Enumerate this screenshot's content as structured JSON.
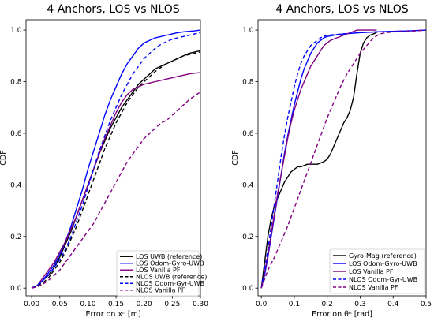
{
  "chart_data": [
    {
      "type": "line",
      "title": "4 Anchors, LOS vs NLOS",
      "xlabel": "Error on xⁿ [m]",
      "ylabel": "CDF",
      "xlim": [
        -0.01,
        0.3
      ],
      "ylim": [
        -0.03,
        1.04
      ],
      "xticks": [
        "0.00",
        "0.05",
        "0.10",
        "0.15",
        "0.20",
        "0.25",
        "0.30"
      ],
      "xtick_values": [
        0.0,
        0.05,
        0.1,
        0.15,
        0.2,
        0.25,
        0.3
      ],
      "yticks": [
        "0.0",
        "0.2",
        "0.4",
        "0.6",
        "0.8",
        "1.0"
      ],
      "ytick_values": [
        0.0,
        0.2,
        0.4,
        0.6,
        0.8,
        1.0
      ],
      "grid": false,
      "legend_position": "lower-right",
      "series": [
        {
          "name": "LOS UWB (reference)",
          "color": "#000000",
          "dash": "solid",
          "x": [
            0.0,
            0.01,
            0.02,
            0.03,
            0.04,
            0.05,
            0.06,
            0.07,
            0.08,
            0.09,
            0.1,
            0.11,
            0.12,
            0.13,
            0.14,
            0.15,
            0.16,
            0.17,
            0.18,
            0.19,
            0.2,
            0.21,
            0.22,
            0.23,
            0.24,
            0.25,
            0.26,
            0.27,
            0.28,
            0.29,
            0.3
          ],
          "y": [
            0.0,
            0.01,
            0.03,
            0.05,
            0.08,
            0.12,
            0.17,
            0.22,
            0.28,
            0.34,
            0.4,
            0.46,
            0.52,
            0.57,
            0.62,
            0.66,
            0.7,
            0.73,
            0.76,
            0.79,
            0.81,
            0.83,
            0.85,
            0.86,
            0.87,
            0.88,
            0.89,
            0.9,
            0.91,
            0.915,
            0.92
          ]
        },
        {
          "name": "LOS Odom-Gyro-UWB",
          "color": "#0000ff",
          "dash": "solid",
          "x": [
            0.0,
            0.01,
            0.02,
            0.03,
            0.04,
            0.05,
            0.06,
            0.07,
            0.08,
            0.09,
            0.1,
            0.11,
            0.12,
            0.13,
            0.14,
            0.15,
            0.16,
            0.17,
            0.18,
            0.19,
            0.2,
            0.21,
            0.22,
            0.23,
            0.24,
            0.25,
            0.26,
            0.27,
            0.28,
            0.29,
            0.3
          ],
          "y": [
            0.0,
            0.01,
            0.03,
            0.06,
            0.09,
            0.13,
            0.18,
            0.24,
            0.31,
            0.38,
            0.46,
            0.53,
            0.6,
            0.67,
            0.73,
            0.78,
            0.83,
            0.87,
            0.9,
            0.93,
            0.95,
            0.96,
            0.97,
            0.975,
            0.98,
            0.985,
            0.99,
            0.993,
            0.995,
            0.997,
            1.0
          ]
        },
        {
          "name": "LOS Vanilla PF",
          "color": "#800080",
          "dash": "solid",
          "x": [
            0.0,
            0.01,
            0.02,
            0.03,
            0.04,
            0.05,
            0.06,
            0.07,
            0.08,
            0.09,
            0.1,
            0.11,
            0.12,
            0.13,
            0.14,
            0.15,
            0.16,
            0.17,
            0.18,
            0.19,
            0.2,
            0.21,
            0.22,
            0.23,
            0.24,
            0.25,
            0.26,
            0.27,
            0.28,
            0.29,
            0.3
          ],
          "y": [
            0.0,
            0.01,
            0.04,
            0.07,
            0.1,
            0.14,
            0.18,
            0.23,
            0.28,
            0.34,
            0.4,
            0.46,
            0.52,
            0.58,
            0.63,
            0.68,
            0.72,
            0.75,
            0.77,
            0.78,
            0.79,
            0.795,
            0.8,
            0.805,
            0.81,
            0.815,
            0.82,
            0.825,
            0.83,
            0.833,
            0.835
          ]
        },
        {
          "name": "NLOS UWB (reference)",
          "color": "#000000",
          "dash": "dashed",
          "x": [
            0.0,
            0.01,
            0.02,
            0.03,
            0.04,
            0.05,
            0.06,
            0.07,
            0.08,
            0.09,
            0.1,
            0.11,
            0.12,
            0.13,
            0.14,
            0.15,
            0.16,
            0.17,
            0.18,
            0.19,
            0.2,
            0.21,
            0.22,
            0.23,
            0.24,
            0.25,
            0.26,
            0.27,
            0.28,
            0.29,
            0.3
          ],
          "y": [
            0.0,
            0.01,
            0.02,
            0.04,
            0.07,
            0.1,
            0.14,
            0.19,
            0.24,
            0.3,
            0.36,
            0.42,
            0.48,
            0.54,
            0.59,
            0.64,
            0.68,
            0.72,
            0.75,
            0.78,
            0.8,
            0.82,
            0.84,
            0.855,
            0.87,
            0.88,
            0.89,
            0.9,
            0.905,
            0.91,
            0.915
          ]
        },
        {
          "name": "NLOS Odom-Gyr-UWB",
          "color": "#0000ff",
          "dash": "dashed",
          "x": [
            0.0,
            0.01,
            0.02,
            0.03,
            0.04,
            0.05,
            0.06,
            0.07,
            0.08,
            0.09,
            0.1,
            0.11,
            0.12,
            0.13,
            0.14,
            0.15,
            0.16,
            0.17,
            0.18,
            0.19,
            0.2,
            0.21,
            0.22,
            0.23,
            0.24,
            0.25,
            0.26,
            0.27,
            0.28,
            0.29,
            0.3
          ],
          "y": [
            0.0,
            0.01,
            0.03,
            0.05,
            0.08,
            0.11,
            0.15,
            0.2,
            0.26,
            0.32,
            0.39,
            0.46,
            0.53,
            0.59,
            0.65,
            0.7,
            0.75,
            0.79,
            0.83,
            0.86,
            0.89,
            0.91,
            0.93,
            0.945,
            0.955,
            0.965,
            0.97,
            0.975,
            0.98,
            0.985,
            0.99
          ]
        },
        {
          "name": "NLOS Vanilla PF",
          "color": "#800080",
          "dash": "dashed",
          "x": [
            0.0,
            0.01,
            0.02,
            0.03,
            0.04,
            0.05,
            0.06,
            0.07,
            0.08,
            0.09,
            0.1,
            0.11,
            0.12,
            0.13,
            0.14,
            0.15,
            0.16,
            0.17,
            0.18,
            0.19,
            0.2,
            0.21,
            0.22,
            0.23,
            0.24,
            0.25,
            0.26,
            0.27,
            0.28,
            0.29,
            0.3
          ],
          "y": [
            0.0,
            0.005,
            0.015,
            0.03,
            0.05,
            0.07,
            0.1,
            0.13,
            0.16,
            0.19,
            0.22,
            0.25,
            0.29,
            0.33,
            0.37,
            0.41,
            0.45,
            0.49,
            0.52,
            0.55,
            0.58,
            0.6,
            0.62,
            0.64,
            0.65,
            0.67,
            0.69,
            0.71,
            0.73,
            0.745,
            0.76
          ]
        }
      ]
    },
    {
      "type": "line",
      "title": "4 Anchors, LOS vs NLOS",
      "xlabel": "Error on θⁿ [rad]",
      "ylabel": "CDF",
      "xlim": [
        -0.01,
        0.5
      ],
      "ylim": [
        -0.03,
        1.04
      ],
      "xticks": [
        "0.0",
        "0.1",
        "0.2",
        "0.3",
        "0.4",
        "0.5"
      ],
      "xtick_values": [
        0.0,
        0.1,
        0.2,
        0.3,
        0.4,
        0.5
      ],
      "yticks": [
        "0.0",
        "0.2",
        "0.4",
        "0.6",
        "0.8",
        "1.0"
      ],
      "ytick_values": [
        0.0,
        0.2,
        0.4,
        0.6,
        0.8,
        1.0
      ],
      "grid": false,
      "legend_position": "lower-right",
      "series": [
        {
          "name": "Gyro-Mag (reference)",
          "color": "#000000",
          "dash": "solid",
          "x": [
            0.0,
            0.01,
            0.02,
            0.03,
            0.04,
            0.05,
            0.06,
            0.07,
            0.08,
            0.09,
            0.1,
            0.11,
            0.12,
            0.13,
            0.14,
            0.15,
            0.16,
            0.17,
            0.18,
            0.19,
            0.2,
            0.21,
            0.22,
            0.23,
            0.24,
            0.25,
            0.26,
            0.27,
            0.28,
            0.29,
            0.3,
            0.31,
            0.32,
            0.33,
            0.34,
            0.35
          ],
          "y": [
            0.0,
            0.1,
            0.2,
            0.27,
            0.32,
            0.35,
            0.38,
            0.41,
            0.43,
            0.45,
            0.46,
            0.47,
            0.47,
            0.475,
            0.48,
            0.48,
            0.48,
            0.48,
            0.485,
            0.49,
            0.5,
            0.52,
            0.55,
            0.58,
            0.61,
            0.64,
            0.66,
            0.69,
            0.74,
            0.83,
            0.91,
            0.95,
            0.97,
            0.98,
            0.985,
            0.99
          ]
        },
        {
          "name": "LOS Odom-Gyro-UWB",
          "color": "#0000ff",
          "dash": "solid",
          "x": [
            0.0,
            0.01,
            0.02,
            0.03,
            0.04,
            0.05,
            0.06,
            0.07,
            0.08,
            0.09,
            0.1,
            0.11,
            0.12,
            0.13,
            0.14,
            0.15,
            0.16,
            0.17,
            0.18,
            0.19,
            0.2,
            0.22,
            0.25,
            0.3,
            0.35,
            0.4,
            0.45,
            0.5
          ],
          "y": [
            0.0,
            0.05,
            0.12,
            0.2,
            0.28,
            0.36,
            0.44,
            0.52,
            0.59,
            0.65,
            0.71,
            0.76,
            0.81,
            0.85,
            0.88,
            0.91,
            0.93,
            0.95,
            0.96,
            0.97,
            0.975,
            0.98,
            0.985,
            0.99,
            0.993,
            0.995,
            0.997,
            1.0
          ]
        },
        {
          "name": "LOS Vanilla PF",
          "color": "#800080",
          "dash": "solid",
          "x": [
            0.0,
            0.01,
            0.02,
            0.03,
            0.04,
            0.05,
            0.06,
            0.07,
            0.08,
            0.09,
            0.1,
            0.11,
            0.12,
            0.13,
            0.14,
            0.15,
            0.16,
            0.17,
            0.18,
            0.19,
            0.2,
            0.21,
            0.22,
            0.23,
            0.24,
            0.25,
            0.26,
            0.27,
            0.28,
            0.29,
            0.3,
            0.35
          ],
          "y": [
            0.0,
            0.06,
            0.13,
            0.21,
            0.29,
            0.37,
            0.44,
            0.51,
            0.58,
            0.64,
            0.69,
            0.73,
            0.77,
            0.8,
            0.83,
            0.86,
            0.88,
            0.9,
            0.92,
            0.94,
            0.95,
            0.96,
            0.965,
            0.97,
            0.975,
            0.98,
            0.985,
            0.99,
            0.995,
            1.0,
            1.0,
            1.0
          ]
        },
        {
          "name": "NLOS Odom-Gyr-UWB",
          "color": "#0000ff",
          "dash": "dashed",
          "x": [
            0.0,
            0.01,
            0.02,
            0.03,
            0.04,
            0.05,
            0.06,
            0.07,
            0.08,
            0.09,
            0.1,
            0.11,
            0.12,
            0.13,
            0.14,
            0.15,
            0.16,
            0.17,
            0.18,
            0.19,
            0.2,
            0.25,
            0.3,
            0.35,
            0.4,
            0.45,
            0.5
          ],
          "y": [
            0.0,
            0.07,
            0.15,
            0.24,
            0.33,
            0.42,
            0.51,
            0.59,
            0.66,
            0.72,
            0.78,
            0.83,
            0.87,
            0.9,
            0.92,
            0.94,
            0.95,
            0.96,
            0.97,
            0.975,
            0.98,
            0.985,
            0.99,
            0.993,
            0.995,
            0.997,
            1.0
          ]
        },
        {
          "name": "NLOS Vanilla PF",
          "color": "#800080",
          "dash": "dashed",
          "x": [
            0.0,
            0.02,
            0.04,
            0.06,
            0.08,
            0.1,
            0.12,
            0.14,
            0.16,
            0.18,
            0.2,
            0.22,
            0.24,
            0.26,
            0.28,
            0.3,
            0.32,
            0.34,
            0.36,
            0.38,
            0.4,
            0.45,
            0.5
          ],
          "y": [
            0.0,
            0.07,
            0.12,
            0.18,
            0.24,
            0.31,
            0.38,
            0.45,
            0.52,
            0.59,
            0.66,
            0.72,
            0.78,
            0.83,
            0.87,
            0.91,
            0.94,
            0.97,
            0.985,
            0.99,
            0.993,
            0.995,
            1.0
          ]
        }
      ]
    }
  ]
}
